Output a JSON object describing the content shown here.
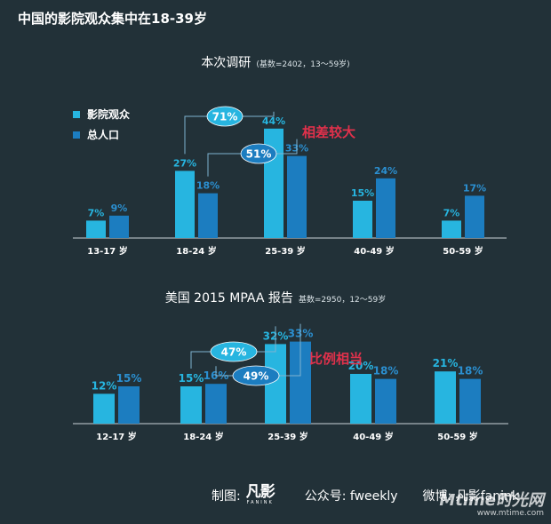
{
  "page_title": "中国的影院观众集中在18-39岁",
  "colors": {
    "cinema": "#27b5e0",
    "population": "#1c7dc0",
    "bracket": "#7fb3d0",
    "label_cinema": "#27b5e0",
    "label_population": "#2b8fd0",
    "highlight": "#e0314b"
  },
  "legend": {
    "cinema": "影院观众",
    "population": "总人口"
  },
  "chart_data": [
    {
      "type": "bar",
      "title": "本次调研",
      "subtitle": "(基数=2402，13～59岁)",
      "categories": [
        "13-17 岁",
        "18-24 岁",
        "25-39 岁",
        "40-49 岁",
        "50-59 岁"
      ],
      "series": [
        {
          "name": "影院观众",
          "values": [
            7,
            27,
            44,
            15,
            7
          ]
        },
        {
          "name": "总人口",
          "values": [
            9,
            18,
            33,
            24,
            17
          ]
        }
      ],
      "value_labels": {
        "cinema": [
          "7%",
          "27%",
          "44%",
          "15%",
          "7%"
        ],
        "population": [
          "9%",
          "18%",
          "33%",
          "24%",
          "17%"
        ]
      },
      "brackets": [
        {
          "label": "71%",
          "series": "cinema",
          "from": 1,
          "to": 2
        },
        {
          "label": "51%",
          "series": "population",
          "from": 1,
          "to": 2
        }
      ],
      "callout": "相差较大",
      "ylim": [
        0,
        50
      ]
    },
    {
      "type": "bar",
      "title": "美国 2015 MPAA 报告",
      "subtitle": "基数=2950，12～59岁",
      "categories": [
        "12-17 岁",
        "18-24 岁",
        "25-39 岁",
        "40-49 岁",
        "50-59 岁"
      ],
      "series": [
        {
          "name": "影院观众",
          "values": [
            12,
            15,
            32,
            20,
            21
          ]
        },
        {
          "name": "总人口",
          "values": [
            15,
            16,
            33,
            18,
            18
          ]
        }
      ],
      "value_labels": {
        "cinema": [
          "12%",
          "15%",
          "32%",
          "20%",
          "21%"
        ],
        "population": [
          "15%",
          "16%",
          "33%",
          "18%",
          "18%"
        ]
      },
      "brackets": [
        {
          "label": "47%",
          "series": "cinema",
          "from": 1,
          "to": 2
        },
        {
          "label": "49%",
          "series": "population",
          "from": 1,
          "to": 2
        }
      ],
      "callout": "比例相当",
      "ylim": [
        0,
        50
      ]
    }
  ],
  "footer": {
    "credit_label": "制图:",
    "logo_mark": "凡影",
    "logo_sub": "FANINK",
    "account": "公众号: fweekly",
    "weibo": "微博: 凡影fanink"
  },
  "watermark": {
    "main": "Mtime时光网",
    "url": "www.mtime.com"
  }
}
